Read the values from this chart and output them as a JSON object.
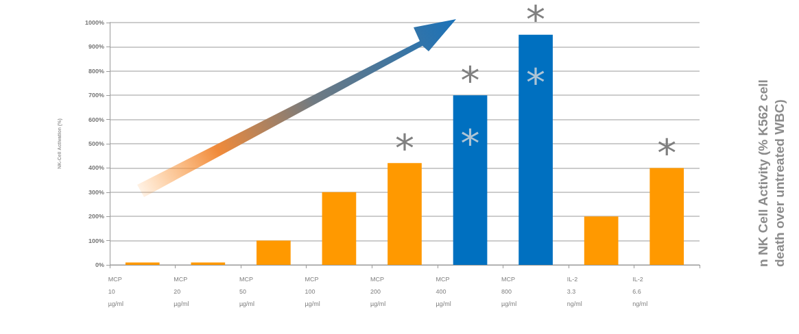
{
  "chart_data": {
    "type": "bar",
    "ylabel": "NK-Cell Activation (%)",
    "categories": [
      "MCP 10 µg/ml",
      "MCP 20 µg/ml",
      "MCP 50 µg/ml",
      "MCP 100 µg/ml",
      "MCP 200 µg/ml",
      "MCP 400 µg/ml",
      "MCP 800 µg/ml",
      "IL-2 3.3 ng/ml",
      "IL-2 6.6 ng/ml"
    ],
    "values": [
      10,
      10,
      100,
      300,
      420,
      700,
      950,
      200,
      400
    ],
    "colors": [
      "#ff9900",
      "#ff9900",
      "#ff9900",
      "#ff9900",
      "#ff9900",
      "#0070c0",
      "#0070c0",
      "#ff9900",
      "#ff9900"
    ],
    "ylim": [
      0,
      1000
    ],
    "yticks": [
      {
        "value": 0,
        "label": "0%"
      },
      {
        "value": 100,
        "label": "100%"
      },
      {
        "value": 200,
        "label": "200%"
      },
      {
        "value": 300,
        "label": "300%"
      },
      {
        "value": 400,
        "label": "400%"
      },
      {
        "value": 500,
        "label": "500%"
      },
      {
        "value": 600,
        "label": "600%"
      },
      {
        "value": 700,
        "label": "700%"
      },
      {
        "value": 800,
        "label": "800%"
      },
      {
        "value": 900,
        "label": "900%"
      },
      {
        "value": 1000,
        "label": "1000%"
      }
    ],
    "grid": "y",
    "value_labels": [
      null,
      null,
      null,
      null,
      "*",
      "*",
      "*",
      null,
      "*"
    ],
    "annotations": [
      "*",
      "*",
      "n NK Cell Activity (% K562 cell death over untreated WBC)"
    ]
  }
}
